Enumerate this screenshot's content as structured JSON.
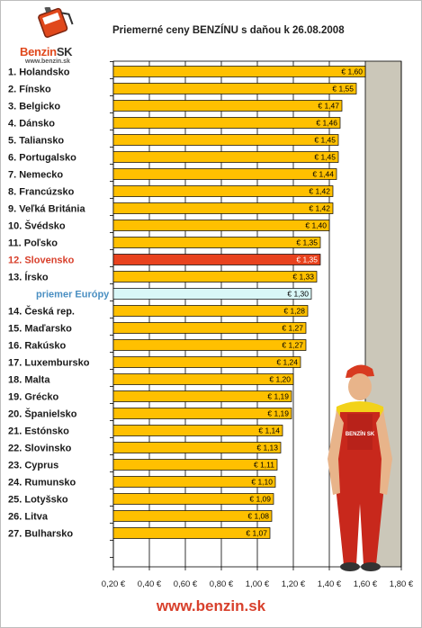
{
  "logo": {
    "name": "Benzin",
    "name_suffix": "SK",
    "url": "www.benzin.sk"
  },
  "footer_url": "www.benzin.sk",
  "mascot_label": "BENZÍN SK",
  "colors": {
    "bar": "#ffc000",
    "bar_highlight": "#e8421e",
    "bar_average": "#d9f7f7",
    "plot_background": "#cbc7b9",
    "accent": "#d8402c"
  },
  "chart_data": {
    "type": "bar",
    "orientation": "horizontal",
    "title": "Priemerné ceny BENZÍNU s daňou k 26.08.2008",
    "categories": [
      "1. Holandsko",
      "2. Fínsko",
      "3. Belgicko",
      "4. Dánsko",
      "5. Taliansko",
      "6. Portugalsko",
      "7. Nemecko",
      "8. Francúzsko",
      "9. Veľká Británia",
      "10. Švédsko",
      "11. Poľsko",
      "12. Slovensko",
      "13. Írsko",
      "priemer Európy",
      "14. Česká rep.",
      "15. Maďarsko",
      "16. Rakúsko",
      "17. Luxembursko",
      "18. Malta",
      "19. Grécko",
      "20. Španielsko",
      "21. Estónsko",
      "22. Slovinsko",
      "23. Cyprus",
      "24. Rumunsko",
      "25. Lotyšsko",
      "26. Litva",
      "27. Bulharsko"
    ],
    "values": [
      1.6,
      1.55,
      1.47,
      1.46,
      1.45,
      1.45,
      1.44,
      1.42,
      1.42,
      1.4,
      1.35,
      1.35,
      1.33,
      1.3,
      1.28,
      1.27,
      1.27,
      1.24,
      1.2,
      1.19,
      1.19,
      1.14,
      1.13,
      1.11,
      1.1,
      1.09,
      1.08,
      1.07
    ],
    "data_labels": [
      "€ 1,60",
      "€ 1,55",
      "€ 1,47",
      "€ 1,46",
      "€ 1,45",
      "€ 1,45",
      "€ 1,44",
      "€ 1,42",
      "€ 1,42",
      "€ 1,40",
      "€ 1,35",
      "€ 1,35",
      "€ 1,33",
      "€ 1,30",
      "€ 1,28",
      "€ 1,27",
      "€ 1,27",
      "€ 1,24",
      "€ 1,20",
      "€ 1,19",
      "€ 1,19",
      "€ 1,14",
      "€ 1,13",
      "€ 1,11",
      "€ 1,10",
      "€ 1,09",
      "€ 1,08",
      "€ 1,07"
    ],
    "highlight_category": "12. Slovensko",
    "average_category": "priemer Európy",
    "x_ticks": [
      0.2,
      0.4,
      0.6,
      0.8,
      1.0,
      1.2,
      1.4,
      1.6,
      1.8
    ],
    "x_tick_labels": [
      "0,20 €",
      "0,40 €",
      "0,60 €",
      "0,80 €",
      "1,00 €",
      "1,20 €",
      "1,40 €",
      "1,60 €",
      "1,80 €"
    ],
    "xlim": [
      0.2,
      1.8
    ],
    "grid": true,
    "xlabel": "",
    "ylabel": ""
  }
}
